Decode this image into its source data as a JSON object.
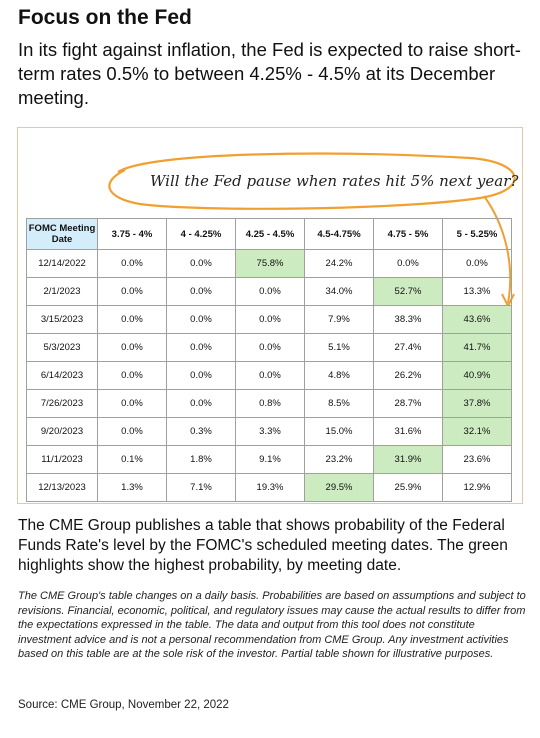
{
  "header": {
    "title": "Focus on the Fed",
    "intro": "In its fight against inflation, the Fed is expected to raise short-term rates 0.5% to between 4.25% - 4.5% at its December meeting."
  },
  "callout": "Will the Fed pause when rates hit 5% next year?",
  "table": {
    "header": [
      "FOMC Meeting Date",
      "3.75 - 4%",
      "4 - 4.25%",
      "4.25 - 4.5%",
      "4.5-4.75%",
      "4.75 - 5%",
      "5 - 5.25%"
    ],
    "rows": [
      [
        "12/14/2022",
        "0.0%",
        "0.0%",
        "75.8%",
        "24.2%",
        "0.0%",
        "0.0%"
      ],
      [
        "2/1/2023",
        "0.0%",
        "0.0%",
        "0.0%",
        "34.0%",
        "52.7%",
        "13.3%"
      ],
      [
        "3/15/2023",
        "0.0%",
        "0.0%",
        "0.0%",
        "7.9%",
        "38.3%",
        "43.6%"
      ],
      [
        "5/3/2023",
        "0.0%",
        "0.0%",
        "0.0%",
        "5.1%",
        "27.4%",
        "41.7%"
      ],
      [
        "6/14/2023",
        "0.0%",
        "0.0%",
        "0.0%",
        "4.8%",
        "26.2%",
        "40.9%"
      ],
      [
        "7/26/2023",
        "0.0%",
        "0.0%",
        "0.8%",
        "8.5%",
        "28.7%",
        "37.8%"
      ],
      [
        "9/20/2023",
        "0.0%",
        "0.3%",
        "3.3%",
        "15.0%",
        "31.6%",
        "32.1%"
      ],
      [
        "11/1/2023",
        "0.1%",
        "1.8%",
        "9.1%",
        "23.2%",
        "31.9%",
        "23.6%"
      ],
      [
        "12/13/2023",
        "1.3%",
        "7.1%",
        "19.3%",
        "29.5%",
        "25.9%",
        "12.9%"
      ]
    ],
    "highlight_color": "#cdebc0"
  },
  "body": "The CME Group publishes a table that shows probability of the Federal Funds Rate's level by the FOMC's scheduled meeting dates. The green highlights show the highest probability, by meeting date.",
  "disclaimer": "The CME Group's table changes on a daily basis. Probabilities are based on assumptions and subject to revisions. Financial, economic, political, and regulatory issues may cause the actual results to differ from the expectations expressed in the table. The data and output from this tool does not constitute investment advice and is not a personal recommendation from CME Group.  Any investment activities based on this table are at the sole risk of the investor. Partial table shown for illustrative purposes.",
  "source": "Source: CME Group, November 22, 2022"
}
